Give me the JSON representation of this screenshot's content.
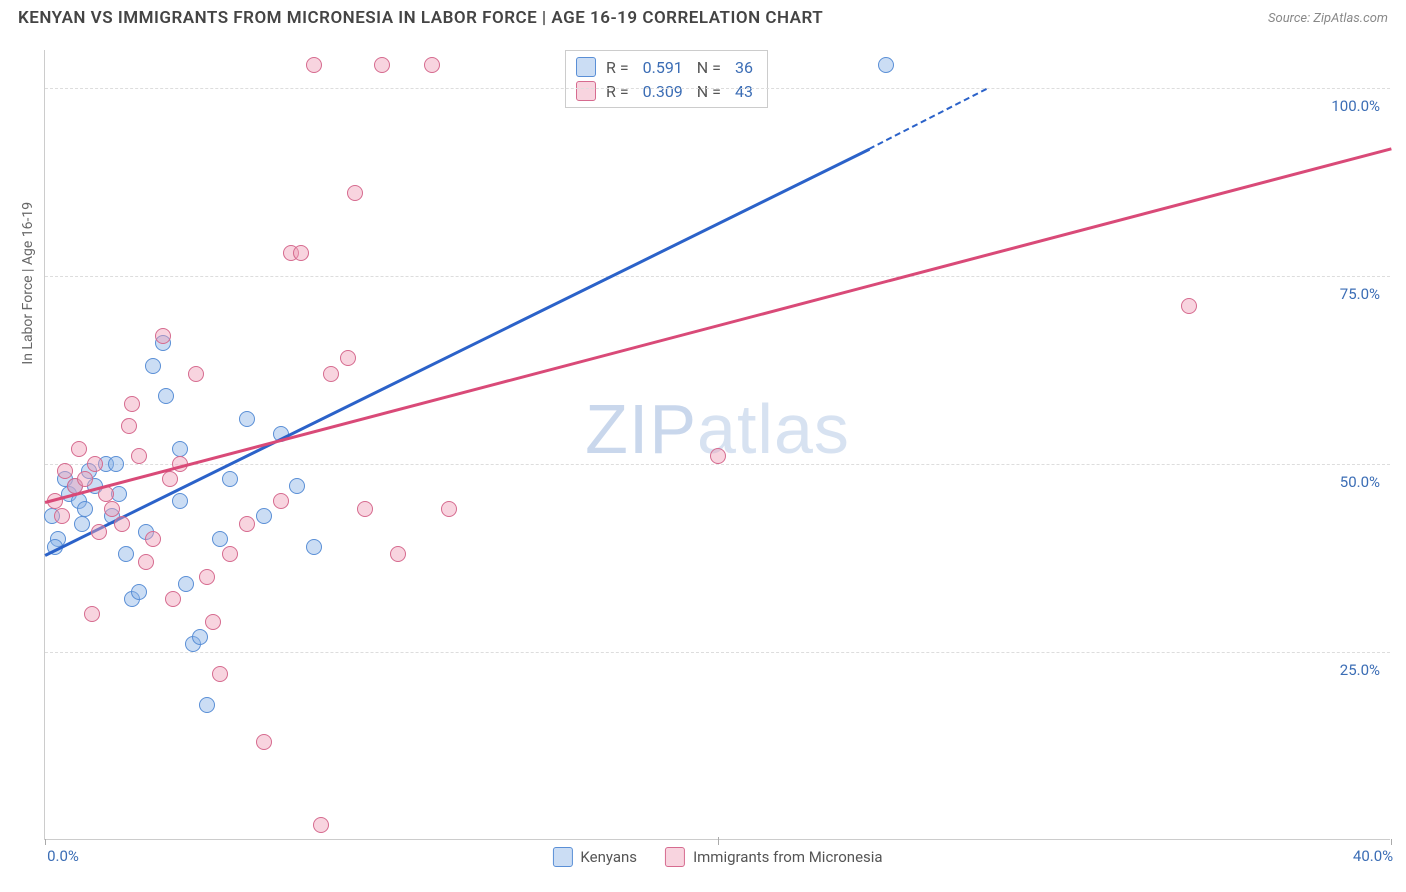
{
  "title": "KENYAN VS IMMIGRANTS FROM MICRONESIA IN LABOR FORCE | AGE 16-19 CORRELATION CHART",
  "source": "Source: ZipAtlas.com",
  "watermark_a": "ZIP",
  "watermark_b": "atlas",
  "y_axis_title": "In Labor Force | Age 16-19",
  "chart": {
    "type": "scatter",
    "xlim": [
      0,
      40
    ],
    "ylim": [
      0,
      105
    ],
    "x_ticks": [
      0,
      20,
      40
    ],
    "x_tick_labels": [
      "0.0%",
      "",
      "40.0%"
    ],
    "y_ticks": [
      25,
      50,
      75,
      100
    ],
    "y_tick_labels": [
      "25.0%",
      "50.0%",
      "75.0%",
      "100.0%"
    ],
    "background_color": "#ffffff",
    "grid_color": "#dddddd",
    "series": [
      {
        "key": "kenyans",
        "label": "Kenyans",
        "fill": "rgba(140,180,230,0.45)",
        "stroke": "#5a8fd6",
        "line_color": "#2b62c9",
        "r_value": "0.591",
        "n_value": "36",
        "trend": {
          "x1": 0,
          "y1": 38,
          "x2": 24.5,
          "y2": 92,
          "dash_to_x": 28,
          "dash_to_y": 100
        },
        "points": [
          [
            0.2,
            43
          ],
          [
            0.4,
            40
          ],
          [
            0.6,
            48
          ],
          [
            0.7,
            46
          ],
          [
            0.9,
            47
          ],
          [
            1.0,
            45
          ],
          [
            1.2,
            44
          ],
          [
            1.3,
            49
          ],
          [
            1.5,
            47
          ],
          [
            1.8,
            50
          ],
          [
            2.0,
            43
          ],
          [
            2.2,
            46
          ],
          [
            2.4,
            38
          ],
          [
            2.6,
            32
          ],
          [
            2.8,
            33
          ],
          [
            3.0,
            41
          ],
          [
            3.2,
            63
          ],
          [
            3.5,
            66
          ],
          [
            3.6,
            59
          ],
          [
            4.0,
            52
          ],
          [
            4.2,
            34
          ],
          [
            4.4,
            26
          ],
          [
            4.6,
            27
          ],
          [
            4.8,
            18
          ],
          [
            5.2,
            40
          ],
          [
            5.5,
            48
          ],
          [
            6.0,
            56
          ],
          [
            6.5,
            43
          ],
          [
            7.0,
            54
          ],
          [
            7.5,
            47
          ],
          [
            8.0,
            39
          ],
          [
            4.0,
            45
          ],
          [
            25,
            103
          ],
          [
            0.3,
            39
          ],
          [
            1.1,
            42
          ],
          [
            2.1,
            50
          ]
        ]
      },
      {
        "key": "micronesia",
        "label": "Immigrants from Micronesia",
        "fill": "rgba(240,160,185,0.45)",
        "stroke": "#d66b8f",
        "line_color": "#d94a78",
        "r_value": "0.309",
        "n_value": "43",
        "trend": {
          "x1": 0,
          "y1": 45,
          "x2": 40,
          "y2": 92
        },
        "points": [
          [
            0.3,
            45
          ],
          [
            0.6,
            49
          ],
          [
            0.9,
            47
          ],
          [
            1.2,
            48
          ],
          [
            1.5,
            50
          ],
          [
            1.8,
            46
          ],
          [
            2.0,
            44
          ],
          [
            2.3,
            42
          ],
          [
            2.5,
            55
          ],
          [
            2.8,
            51
          ],
          [
            3.0,
            37
          ],
          [
            3.2,
            40
          ],
          [
            3.5,
            67
          ],
          [
            3.8,
            32
          ],
          [
            4.0,
            50
          ],
          [
            4.5,
            62
          ],
          [
            5.0,
            29
          ],
          [
            5.2,
            22
          ],
          [
            5.5,
            38
          ],
          [
            6.0,
            42
          ],
          [
            6.5,
            13
          ],
          [
            7.0,
            45
          ],
          [
            7.3,
            78
          ],
          [
            7.6,
            78
          ],
          [
            8.0,
            103
          ],
          [
            8.2,
            2
          ],
          [
            8.5,
            62
          ],
          [
            9.0,
            64
          ],
          [
            9.5,
            44
          ],
          [
            10.0,
            103
          ],
          [
            10.5,
            38
          ],
          [
            11.5,
            103
          ],
          [
            12.0,
            44
          ],
          [
            1.0,
            52
          ],
          [
            1.4,
            30
          ],
          [
            2.6,
            58
          ],
          [
            3.7,
            48
          ],
          [
            4.8,
            35
          ],
          [
            9.2,
            86
          ],
          [
            20,
            51
          ],
          [
            34,
            71
          ],
          [
            0.5,
            43
          ],
          [
            1.6,
            41
          ]
        ]
      }
    ]
  },
  "legend_stats": {
    "r_label": "R =",
    "n_label": "N ="
  }
}
